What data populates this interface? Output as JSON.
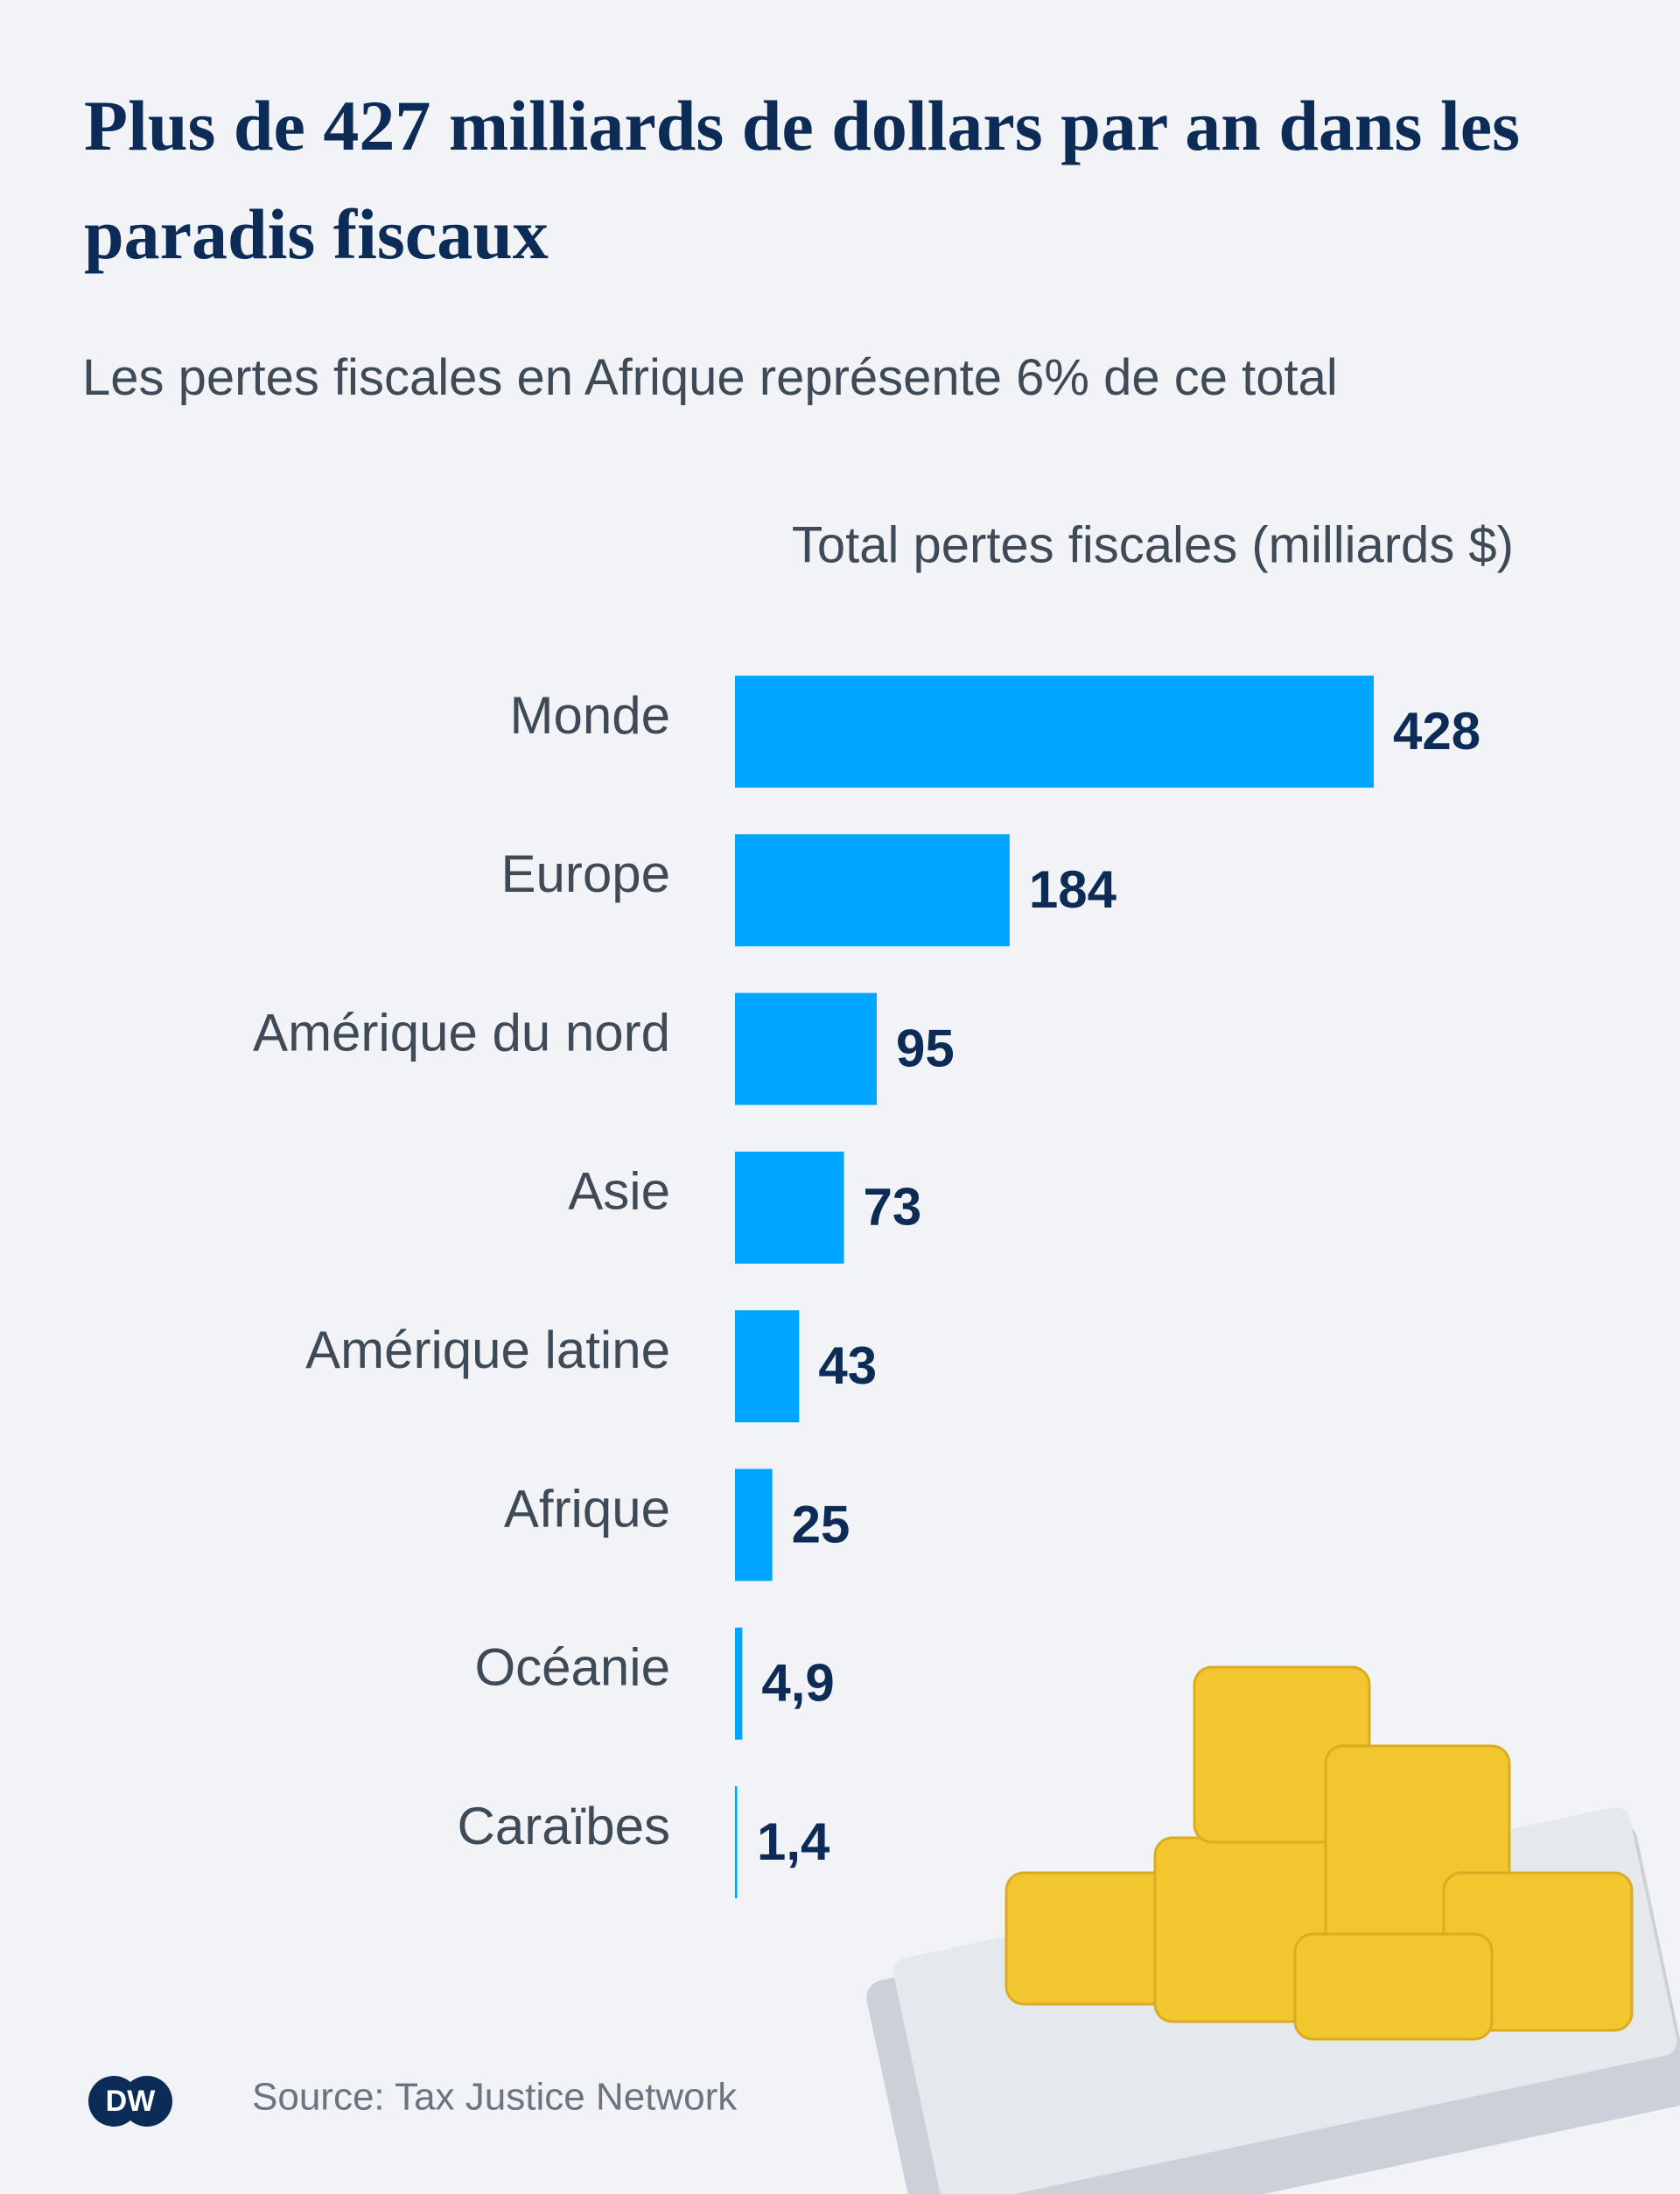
{
  "chart_data": {
    "type": "bar",
    "orientation": "horizontal",
    "title": "Plus de 427 milliards de dollars par an dans les paradis fiscaux",
    "subtitle": "Les pertes fiscales en Afrique représente 6% de ce total",
    "axis_title": "Total pertes fiscales (milliards $)",
    "categories": [
      "Monde",
      "Europe",
      "Amérique du nord",
      "Asie",
      "Amérique latine",
      "Afrique",
      "Océanie",
      "Caraïbes"
    ],
    "values": [
      428,
      184,
      95,
      73,
      43,
      25,
      4.9,
      1.4
    ],
    "value_labels": [
      "428",
      "184",
      "95",
      "73",
      "43",
      "25",
      "4,9",
      "1,4"
    ],
    "color": "#00a5ff",
    "source": "Source: Tax Justice Network",
    "logo": "DW"
  }
}
